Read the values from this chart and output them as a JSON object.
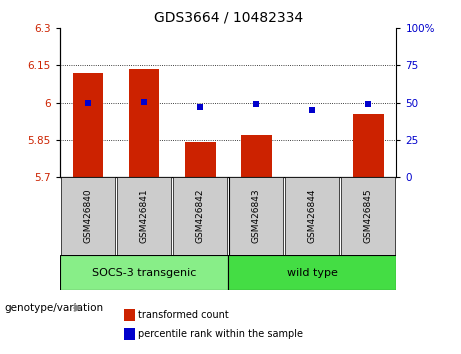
{
  "title": "GDS3664 / 10482334",
  "samples": [
    "GSM426840",
    "GSM426841",
    "GSM426842",
    "GSM426843",
    "GSM426844",
    "GSM426845"
  ],
  "bar_values": [
    6.12,
    6.135,
    5.84,
    5.87,
    5.701,
    5.955
  ],
  "dot_values": [
    50.0,
    50.5,
    47.0,
    49.0,
    45.0,
    49.0
  ],
  "bar_base": 5.7,
  "ylim_left": [
    5.7,
    6.3
  ],
  "ylim_right": [
    0,
    100
  ],
  "yticks_left": [
    5.7,
    5.85,
    6.0,
    6.15,
    6.3
  ],
  "ytick_labels_left": [
    "5.7",
    "5.85",
    "6",
    "6.15",
    "6.3"
  ],
  "yticks_right": [
    0,
    25,
    50,
    75,
    100
  ],
  "ytick_labels_right": [
    "0",
    "25",
    "50",
    "75",
    "100%"
  ],
  "bar_color": "#cc2200",
  "dot_color": "#0000cc",
  "group1_label": "SOCS-3 transgenic",
  "group2_label": "wild type",
  "group1_indices": [
    0,
    1,
    2
  ],
  "group2_indices": [
    3,
    4,
    5
  ],
  "group1_color": "#88ee88",
  "group2_color": "#44dd44",
  "sample_box_color": "#cccccc",
  "genotype_label": "genotype/variation",
  "legend_bar_label": "transformed count",
  "legend_dot_label": "percentile rank within the sample",
  "title_fontsize": 10,
  "tick_fontsize": 7.5,
  "sample_fontsize": 6.5,
  "group_fontsize": 8,
  "legend_fontsize": 7,
  "genotype_fontsize": 7.5
}
